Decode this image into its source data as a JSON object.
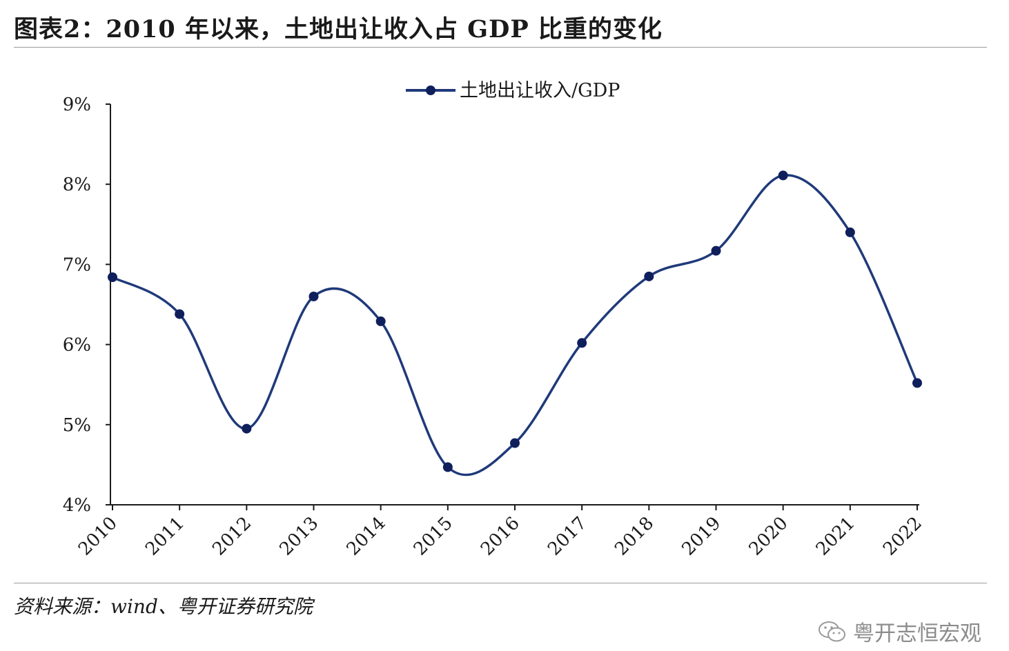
{
  "header": {
    "title": "图表2：2010 年以来，土地出让收入占 GDP 比重的变化"
  },
  "footer": {
    "source": "资料来源：wind、粤开证券研究院",
    "watermark": "粤开志恒宏观"
  },
  "colors": {
    "series": "#1f3a7a",
    "marker": "#0f1f5c",
    "axis": "#1a1a1a",
    "rule": "#9a9a9a"
  },
  "chart_data": {
    "type": "line",
    "smooth": true,
    "legend_position": "top-center",
    "categories": [
      "2010",
      "2011",
      "2012",
      "2013",
      "2014",
      "2015",
      "2016",
      "2017",
      "2018",
      "2019",
      "2020",
      "2021",
      "2022"
    ],
    "series": [
      {
        "name": "土地出让收入/GDP",
        "values": [
          6.84,
          6.38,
          4.95,
          6.6,
          6.29,
          4.47,
          4.77,
          6.02,
          6.85,
          7.17,
          8.11,
          7.4,
          5.52
        ]
      }
    ],
    "yticks": [
      "4%",
      "5%",
      "6%",
      "7%",
      "8%",
      "9%"
    ],
    "ylim": [
      4,
      9
    ],
    "grid": false
  }
}
